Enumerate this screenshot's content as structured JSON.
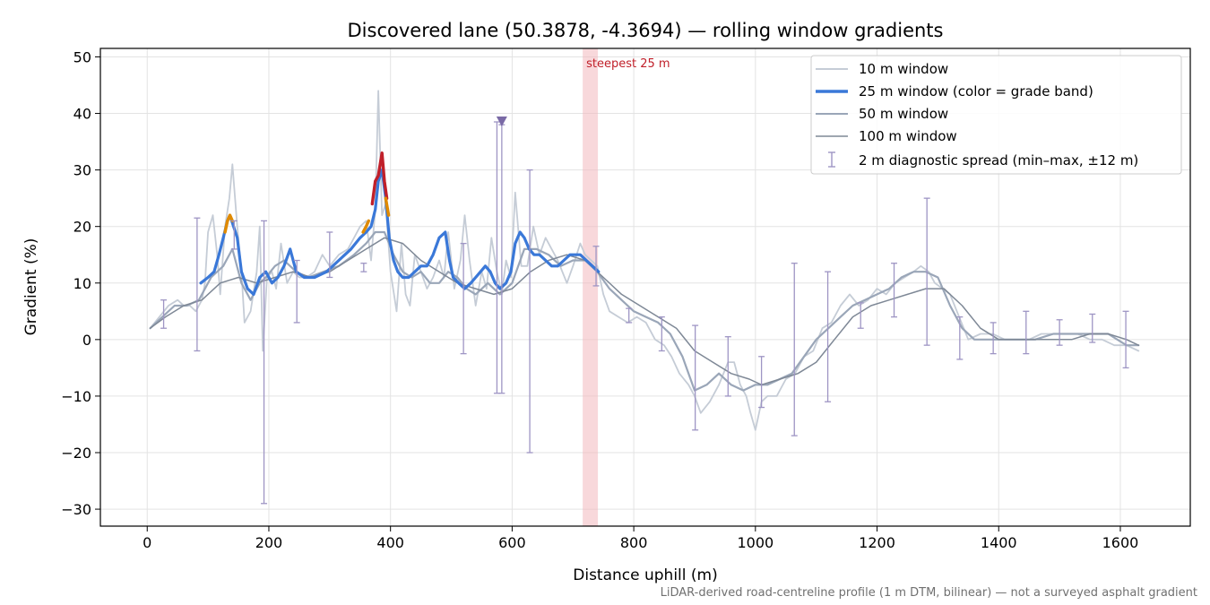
{
  "chart_data": {
    "type": "line",
    "title": "Discovered lane (50.3878, -4.3694) — rolling window gradients",
    "xlabel": "Distance uphill (m)",
    "ylabel": "Gradient (%)",
    "xlim": [
      -77,
      1715
    ],
    "ylim": [
      -33,
      51.5
    ],
    "xticks": [
      0,
      200,
      400,
      600,
      800,
      1000,
      1200,
      1400,
      1600
    ],
    "yticks": [
      -30,
      -20,
      -10,
      0,
      10,
      20,
      30,
      40,
      50
    ],
    "grid": true,
    "legend_position": "top-right",
    "footnote": "LiDAR-derived road-centreline profile (1 m DTM, bilinear) — not a surveyed asphalt gradient",
    "steepest_band": {
      "label": "steepest 25 m",
      "x_start": 716,
      "x_end": 741
    },
    "peak_marker": {
      "x": 583,
      "y": 38.5
    },
    "colors": {
      "w10": "#c5ccd6",
      "w25": "#3a78d8",
      "w50": "#9aa6b8",
      "w100": "#7e8896",
      "errorbar": "#9e95c4",
      "band": "#f2b8bd",
      "orange": "#e08a00",
      "red": "#c0202a",
      "marker": "#7a6aa6"
    },
    "series": [
      {
        "name": "10 m window",
        "key": "w10",
        "x": [
          5,
          20,
          35,
          50,
          60,
          70,
          80,
          90,
          95,
          100,
          108,
          115,
          120,
          128,
          135,
          140,
          148,
          155,
          160,
          170,
          180,
          185,
          190,
          197,
          205,
          212,
          220,
          230,
          240,
          250,
          262,
          275,
          288,
          300,
          315,
          330,
          340,
          350,
          360,
          368,
          375,
          380,
          386,
          392,
          400,
          410,
          418,
          425,
          432,
          440,
          450,
          460,
          470,
          480,
          488,
          495,
          505,
          515,
          522,
          530,
          540,
          550,
          558,
          566,
          575,
          583,
          590,
          598,
          605,
          615,
          625,
          635,
          645,
          655,
          665,
          675,
          690,
          700,
          712,
          720,
          730,
          740,
          750,
          760,
          775,
          790,
          805,
          820,
          835,
          850,
          862,
          875,
          890,
          900,
          910,
          925,
          940,
          955,
          965,
          975,
          985,
          992,
          1000,
          1010,
          1020,
          1035,
          1050,
          1065,
          1080,
          1095,
          1110,
          1125,
          1140,
          1155,
          1170,
          1185,
          1200,
          1215,
          1230,
          1245,
          1260,
          1272,
          1285,
          1295,
          1308,
          1320,
          1335,
          1350,
          1370,
          1390,
          1410,
          1430,
          1450,
          1470,
          1490,
          1510,
          1530,
          1550,
          1570,
          1590,
          1610,
          1630
        ],
        "y": [
          2,
          4,
          6,
          7,
          6,
          6,
          5,
          7,
          10,
          19,
          22,
          15,
          8,
          20,
          25,
          31,
          20,
          12,
          3,
          5,
          12,
          20,
          -2,
          11,
          12,
          9,
          17,
          10,
          12,
          11,
          11,
          12,
          15,
          13,
          15,
          16,
          18,
          20,
          21,
          14,
          23,
          44,
          22,
          24,
          12,
          5,
          17,
          8,
          6,
          15,
          12,
          9,
          11,
          14,
          11,
          19,
          9,
          14,
          22,
          14,
          6,
          12,
          9,
          18,
          12,
          8,
          14,
          11,
          26,
          13,
          13,
          20,
          15,
          18,
          16,
          14,
          10,
          13,
          17,
          15,
          14,
          13,
          8,
          5,
          4,
          3,
          4,
          3,
          0,
          -1,
          -3,
          -6,
          -8,
          -10,
          -13,
          -11,
          -8,
          -4,
          -4,
          -8,
          -10,
          -13,
          -16,
          -11,
          -10,
          -10,
          -7,
          -6,
          -3,
          -2,
          2,
          3,
          6,
          8,
          6,
          7,
          9,
          8,
          10,
          11,
          12,
          13,
          12,
          10,
          9,
          8,
          4,
          0,
          1,
          1,
          0,
          0,
          0,
          1,
          1,
          1,
          1,
          0,
          0,
          -1,
          -1,
          -2
        ]
      },
      {
        "name": "25 m window (color = grade band)",
        "key": "w25",
        "x": [
          88,
          100,
          110,
          118,
          125,
          132,
          136,
          142,
          148,
          155,
          165,
          175,
          185,
          195,
          205,
          215,
          225,
          235,
          245,
          258,
          275,
          295,
          315,
          335,
          350,
          360,
          368,
          375,
          380,
          386,
          392,
          398,
          405,
          412,
          420,
          430,
          440,
          450,
          460,
          470,
          480,
          490,
          497,
          503,
          512,
          522,
          532,
          540,
          548,
          556,
          564,
          572,
          580,
          590,
          598,
          605,
          613,
          620,
          628,
          636,
          645,
          655,
          665,
          675,
          685,
          695,
          705,
          712,
          722,
          732,
          742
        ],
        "y": [
          10,
          11,
          12,
          15,
          18,
          21,
          22,
          20,
          18,
          12,
          9,
          8,
          11,
          12,
          10,
          11,
          13,
          16,
          12,
          11,
          11,
          12,
          14,
          16,
          18,
          19,
          20,
          23,
          28,
          30,
          25,
          18,
          14,
          12,
          11,
          11,
          12,
          13,
          13,
          15,
          18,
          19,
          14,
          11,
          10,
          9,
          10,
          11,
          12,
          13,
          12,
          10,
          9,
          10,
          12,
          17,
          19,
          18,
          16,
          15,
          15,
          14,
          13,
          13,
          14,
          15,
          15,
          15,
          14,
          13,
          12
        ],
        "grade_segments": [
          {
            "color_key": "orange",
            "x": [
              128,
              132,
              136,
              140
            ],
            "y": [
              19,
              21,
              22,
              21
            ]
          },
          {
            "color_key": "orange",
            "x": [
              355,
              360,
              364
            ],
            "y": [
              19,
              20,
              21
            ]
          },
          {
            "color_key": "red",
            "x": [
              370,
              375,
              380,
              386,
              390,
              394
            ],
            "y": [
              24,
              28,
              29,
              33,
              28,
              25
            ]
          },
          {
            "color_key": "orange",
            "x": [
              392,
              397
            ],
            "y": [
              25,
              22
            ]
          }
        ]
      },
      {
        "name": "50 m window",
        "key": "w50",
        "x": [
          5,
          25,
          45,
          65,
          85,
          105,
          125,
          140,
          155,
          170,
          185,
          195,
          210,
          225,
          245,
          265,
          290,
          315,
          340,
          360,
          375,
          390,
          405,
          420,
          435,
          450,
          465,
          480,
          495,
          510,
          525,
          540,
          560,
          580,
          600,
          620,
          640,
          660,
          680,
          700,
          720,
          740,
          760,
          780,
          800,
          820,
          840,
          860,
          880,
          900,
          920,
          940,
          960,
          980,
          1000,
          1020,
          1040,
          1060,
          1080,
          1100,
          1120,
          1140,
          1160,
          1180,
          1200,
          1220,
          1240,
          1260,
          1280,
          1300,
          1320,
          1340,
          1360,
          1380,
          1400,
          1430,
          1460,
          1490,
          1520,
          1550,
          1580,
          1610,
          1630
        ],
        "y": [
          2,
          4,
          6,
          6,
          7,
          11,
          13,
          16,
          10,
          7,
          10,
          11,
          13,
          14,
          12,
          11,
          12,
          13,
          15,
          17,
          19,
          19,
          15,
          12,
          11,
          12,
          10,
          10,
          12,
          11,
          9,
          8,
          10,
          8,
          10,
          16,
          16,
          15,
          13,
          14,
          14,
          12,
          9,
          7,
          5,
          4,
          3,
          1,
          -3,
          -9,
          -8,
          -6,
          -8,
          -9,
          -8,
          -8,
          -7,
          -6,
          -3,
          0,
          2,
          4,
          6,
          7,
          8,
          9,
          11,
          12,
          12,
          11,
          6,
          2,
          0,
          0,
          0,
          0,
          0,
          1,
          1,
          1,
          1,
          -1,
          -1
        ]
      },
      {
        "name": "100 m window",
        "key": "w100",
        "x": [
          5,
          30,
          60,
          90,
          120,
          150,
          180,
          210,
          240,
          270,
          300,
          330,
          360,
          390,
          420,
          450,
          480,
          510,
          540,
          570,
          600,
          630,
          660,
          690,
          720,
          750,
          780,
          810,
          840,
          870,
          900,
          930,
          960,
          990,
          1010,
          1040,
          1070,
          1100,
          1130,
          1160,
          1190,
          1220,
          1250,
          1280,
          1310,
          1340,
          1370,
          1400,
          1430,
          1460,
          1490,
          1520,
          1550,
          1580,
          1610,
          1630
        ],
        "y": [
          2,
          4,
          6,
          7,
          10,
          11,
          10,
          11,
          12,
          11,
          12,
          14,
          16,
          18,
          17,
          14,
          12,
          10,
          9,
          8,
          9,
          12,
          14,
          15,
          14,
          11,
          8,
          6,
          4,
          2,
          -2,
          -4,
          -6,
          -7,
          -8,
          -7,
          -6,
          -4,
          0,
          4,
          6,
          7,
          8,
          9,
          9,
          6,
          2,
          0,
          0,
          0,
          0,
          0,
          1,
          1,
          0,
          -1
        ]
      }
    ],
    "error_bars": {
      "name": "2 m diagnostic spread (min–max, ±12 m)",
      "items": [
        {
          "x": 27,
          "lo": 2,
          "hi": 7
        },
        {
          "x": 82,
          "lo": -2,
          "hi": 21.5
        },
        {
          "x": 143,
          "lo": 16,
          "hi": 21
        },
        {
          "x": 192,
          "lo": -29,
          "hi": 21
        },
        {
          "x": 246,
          "lo": 3,
          "hi": 14
        },
        {
          "x": 300,
          "lo": 11,
          "hi": 19
        },
        {
          "x": 356,
          "lo": 12,
          "hi": 13.5
        },
        {
          "x": 520,
          "lo": -2.5,
          "hi": 17
        },
        {
          "x": 575,
          "lo": -9.5,
          "hi": 38.5
        },
        {
          "x": 583,
          "lo": -9.5,
          "hi": 38
        },
        {
          "x": 629,
          "lo": -20,
          "hi": 30
        },
        {
          "x": 738,
          "lo": 9.5,
          "hi": 16.5
        },
        {
          "x": 792,
          "lo": 3,
          "hi": 5.5
        },
        {
          "x": 846,
          "lo": -2,
          "hi": 4
        },
        {
          "x": 901,
          "lo": -16,
          "hi": 2.5
        },
        {
          "x": 955,
          "lo": -10,
          "hi": 0.5
        },
        {
          "x": 1010,
          "lo": -12,
          "hi": -3
        },
        {
          "x": 1064,
          "lo": -17,
          "hi": 13.5
        },
        {
          "x": 1119,
          "lo": -11,
          "hi": 12
        },
        {
          "x": 1173,
          "lo": 2,
          "hi": 6.5
        },
        {
          "x": 1228,
          "lo": 4,
          "hi": 13.5
        },
        {
          "x": 1282,
          "lo": -1,
          "hi": 25
        },
        {
          "x": 1336,
          "lo": -3.5,
          "hi": 4
        },
        {
          "x": 1391,
          "lo": -2.5,
          "hi": 3
        },
        {
          "x": 1445,
          "lo": -2.5,
          "hi": 5
        },
        {
          "x": 1500,
          "lo": -1,
          "hi": 3.5
        },
        {
          "x": 1554,
          "lo": -0.5,
          "hi": 4.5
        },
        {
          "x": 1609,
          "lo": -5,
          "hi": 5
        }
      ]
    }
  }
}
